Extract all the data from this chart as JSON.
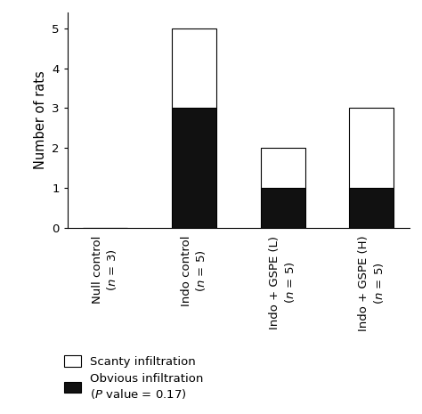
{
  "categories": [
    "Null control\n($n$ = 3)",
    "Indo control\n($n$ = 5)",
    "Indo + GSPE (L)\n($n$ = 5)",
    "Indo + GSPE (H)\n($n$ = 5)"
  ],
  "scanty": [
    0,
    2,
    1,
    2
  ],
  "obvious": [
    0,
    3,
    1,
    1
  ],
  "ylabel": "Number of rats",
  "ylim": [
    0,
    5.4
  ],
  "yticks": [
    0,
    1,
    2,
    3,
    4,
    5
  ],
  "scanty_color": "#ffffff",
  "obvious_color": "#111111",
  "edge_color": "#000000",
  "legend_scanty": "Scanty infiltration",
  "legend_obvious": "Obvious infiltration\n($P$ value = 0.17)",
  "background_color": "#ffffff",
  "bar_width": 0.5,
  "fontsize_ticks": 9.5,
  "fontsize_ylabel": 10.5,
  "fontsize_legend": 9.5
}
